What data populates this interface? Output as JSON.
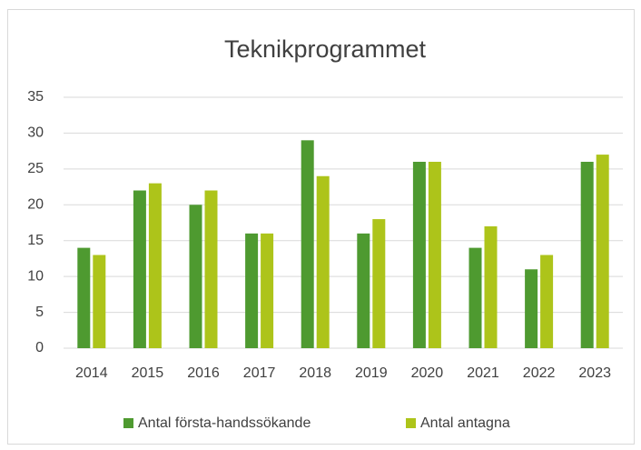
{
  "chart_data": {
    "type": "bar",
    "title": "Teknikprogrammet",
    "categories": [
      "2014",
      "2015",
      "2016",
      "2017",
      "2018",
      "2019",
      "2020",
      "2021",
      "2022",
      "2023"
    ],
    "series": [
      {
        "name": "Antal första-handssökande",
        "color": "#4e9a30",
        "values": [
          14,
          22,
          20,
          16,
          29,
          16,
          26,
          14,
          11,
          26
        ]
      },
      {
        "name": "Antal antagna",
        "color": "#adc41a",
        "values": [
          13,
          23,
          22,
          16,
          24,
          18,
          26,
          17,
          13,
          27
        ]
      }
    ],
    "ylim": [
      0,
      35
    ],
    "yticks": [
      0,
      5,
      10,
      15,
      20,
      25,
      30,
      35
    ],
    "grid": true,
    "legend": "bottom"
  }
}
